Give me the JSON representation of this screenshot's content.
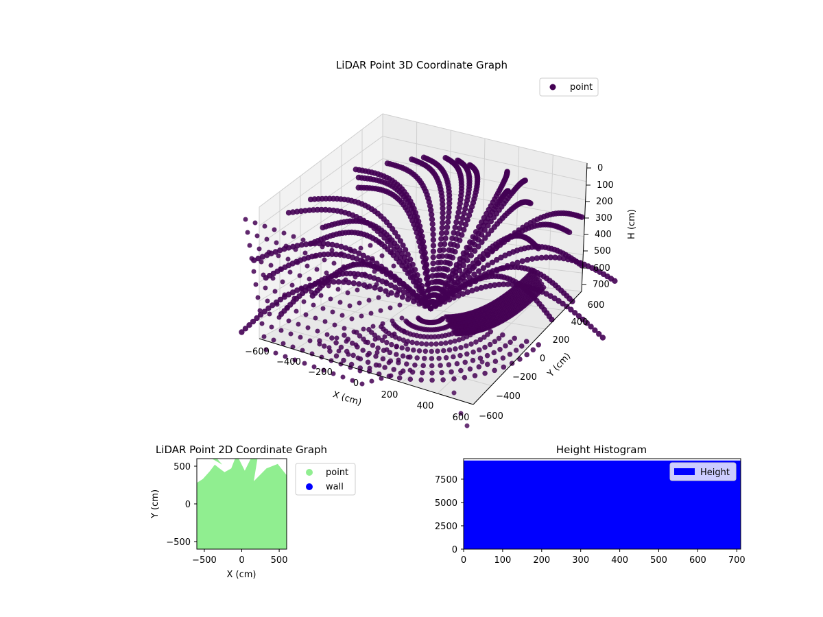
{
  "chart_data": [
    {
      "type": "scatter",
      "projection": "3d",
      "title": "LiDAR Point 3D Coordinate Graph",
      "xlabel": "X (cm)",
      "ylabel": "Y (cm)",
      "zlabel": "H (cm)",
      "xlim": [
        -650,
        650
      ],
      "ylim": [
        -650,
        650
      ],
      "zlim": [
        700,
        0
      ],
      "x_ticks": [
        "−600",
        "−400",
        "−200",
        "0",
        "200",
        "400",
        "600"
      ],
      "y_ticks": [
        "−600",
        "−400",
        "−200",
        "0",
        "200",
        "400",
        "600"
      ],
      "z_ticks": [
        "0",
        "100",
        "200",
        "300",
        "400",
        "500",
        "600",
        "700"
      ],
      "z_axis_inverted": true,
      "grid": true,
      "legend": {
        "placement": "top-right",
        "entries": [
          "point"
        ]
      },
      "series": [
        {
          "name": "point",
          "color": "#440154"
        }
      ],
      "description_of_data": "dense hemispherical dome of scan lines converging at center"
    },
    {
      "type": "scatter",
      "title": "LiDAR Point 2D Coordinate Graph",
      "xlabel": "X (cm)",
      "ylabel": "Y (cm)",
      "xlim": [
        -600,
        600
      ],
      "ylim": [
        -600,
        600
      ],
      "x_ticks": [
        "−500",
        "0",
        "500"
      ],
      "y_ticks": [
        "−500",
        "0",
        "500"
      ],
      "legend": {
        "placement": "outside-right",
        "entries": [
          "point",
          "wall"
        ]
      },
      "series": [
        {
          "name": "point",
          "color": "#90ee90"
        },
        {
          "name": "wall",
          "color": "#0000ff"
        }
      ]
    },
    {
      "type": "bar",
      "title": "Height Histogram",
      "xlim": [
        0,
        710
      ],
      "ylim": [
        0,
        9700
      ],
      "x_ticks": [
        "0",
        "100",
        "200",
        "300",
        "400",
        "500",
        "600",
        "700"
      ],
      "y_ticks": [
        "0",
        "2500",
        "5000",
        "7500"
      ],
      "legend": {
        "placement": "top-right",
        "entries": [
          "Height"
        ]
      },
      "series": [
        {
          "name": "Height",
          "color": "#0000ff",
          "value": 9500,
          "range": [
            0,
            710
          ]
        }
      ]
    }
  ]
}
